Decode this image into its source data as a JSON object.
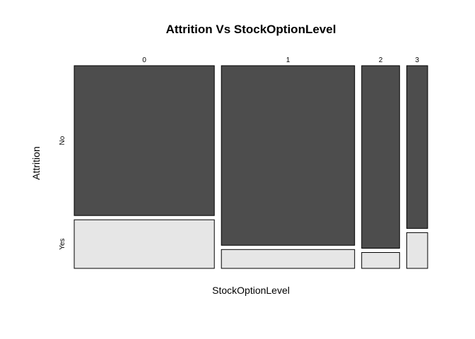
{
  "chart_data": {
    "type": "mosaic",
    "title": "Attrition Vs StockOptionLevel",
    "xlabel": "StockOptionLevel",
    "ylabel": "Attrition",
    "x_categories": [
      "0",
      "1",
      "2",
      "3"
    ],
    "y_categories": [
      "No",
      "Yes"
    ],
    "column_proportions": [
      0.388,
      0.369,
      0.105,
      0.058
    ],
    "series": [
      {
        "name": "No",
        "color": "#4d4d4d",
        "values": [
          0.755,
          0.905,
          0.92,
          0.82
        ]
      },
      {
        "name": "Yes",
        "color": "#e6e6e6",
        "values": [
          0.245,
          0.095,
          0.08,
          0.18
        ]
      }
    ]
  }
}
